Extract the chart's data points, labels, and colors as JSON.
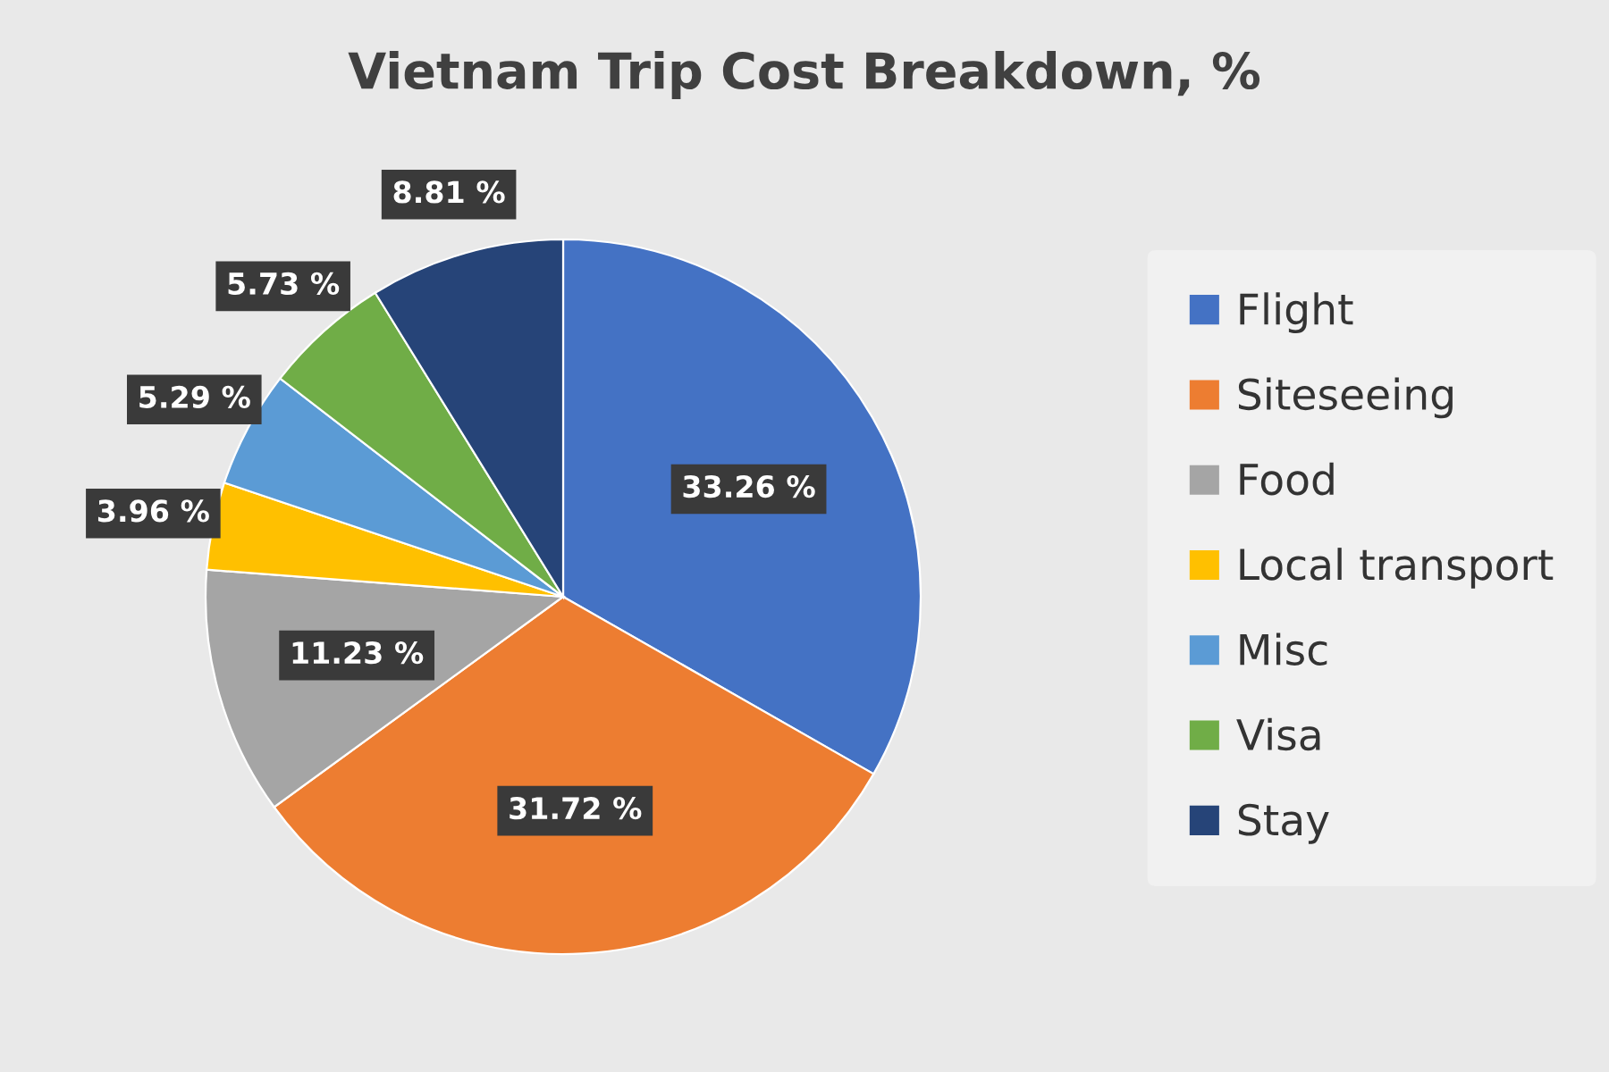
{
  "chart_data": {
    "type": "pie",
    "title": "Vietnam Trip Cost Breakdown, %",
    "categories": [
      "Flight",
      "Siteseeing",
      "Food",
      "Local transport",
      "Misc",
      "Visa",
      "Stay"
    ],
    "values": [
      33.26,
      31.72,
      11.23,
      3.96,
      5.29,
      5.73,
      8.81
    ],
    "colors": [
      "#4472c4",
      "#ed7d31",
      "#a5a5a5",
      "#ffc000",
      "#5b9bd5",
      "#70ad47",
      "#264478"
    ],
    "value_labels": [
      "33.26 %",
      "31.72 %",
      "11.23 %",
      "3.96 %",
      "5.29 %",
      "5.73 %",
      "8.81 %"
    ],
    "legend": "right"
  }
}
